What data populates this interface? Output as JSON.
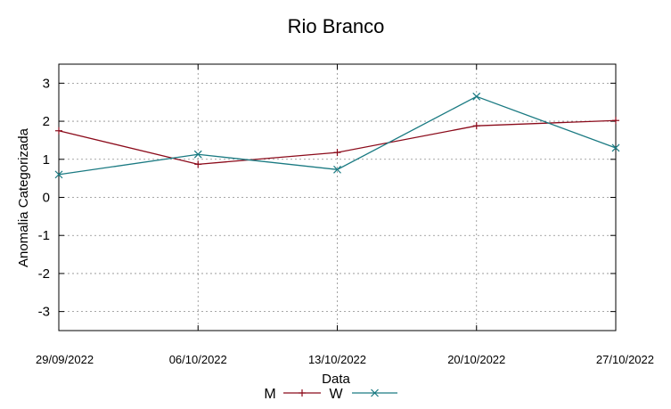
{
  "chart_data": {
    "type": "line",
    "title": "Rio Branco",
    "xlabel": "Data",
    "ylabel": "Anomalia Categorizada",
    "x": [
      "29/09/2022",
      "06/10/2022",
      "13/10/2022",
      "20/10/2022",
      "27/10/2022"
    ],
    "x_days": [
      0,
      7,
      14,
      21,
      28
    ],
    "ylim": [
      -3.5,
      3.5
    ],
    "yticks": [
      -3,
      -2,
      -1,
      0,
      1,
      2,
      3
    ],
    "grid": true,
    "legend_position": "bottom-center",
    "series": [
      {
        "name": "M",
        "color": "#8b0a1a",
        "marker": "plus",
        "points": [
          [
            0,
            1.75
          ],
          [
            7,
            0.87
          ],
          [
            14,
            1.18
          ],
          [
            21,
            1.88
          ],
          [
            28,
            2.02
          ]
        ]
      },
      {
        "name": "W",
        "color": "#1a7a82",
        "marker": "x",
        "points": [
          [
            0,
            0.6
          ],
          [
            7,
            1.13
          ],
          [
            14,
            0.73
          ],
          [
            21,
            2.65
          ],
          [
            28,
            1.3
          ]
        ]
      }
    ]
  }
}
